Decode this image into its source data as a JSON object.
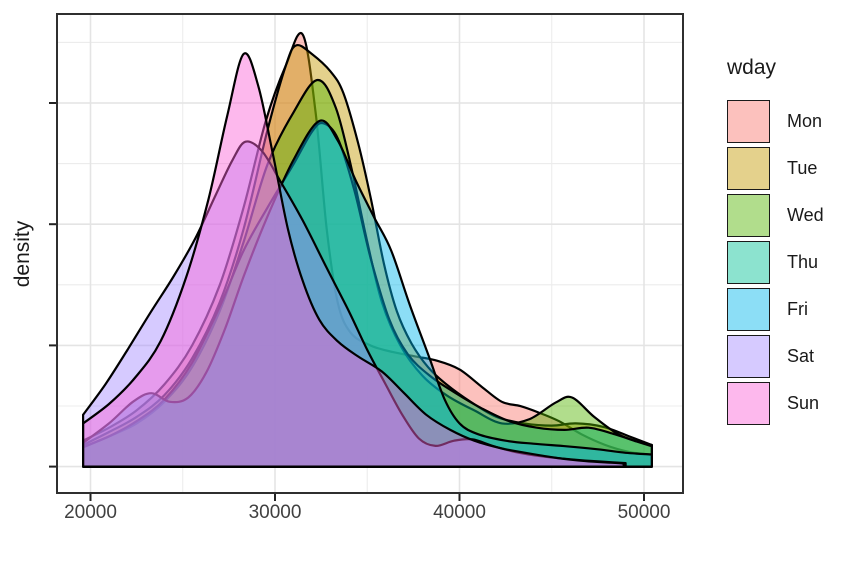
{
  "chart_data": {
    "type": "area",
    "subtype": "overlapping-density-curves",
    "title": "",
    "xlabel": "",
    "ylabel": "density",
    "x_ticks": [
      20000,
      30000,
      40000,
      50000
    ],
    "x_tick_labels": [
      "20000",
      "30000",
      "40000",
      "50000"
    ],
    "x_minor_ticks": [
      25000,
      35000,
      45000
    ],
    "xlim": [
      18180,
      52100
    ],
    "y_axis_labeled": false,
    "y_major_tick_count": 4,
    "y_unit": "relative density (peak of Mon = 1.0; y tick labels not shown)",
    "grid": true,
    "legend": {
      "title": "wday",
      "position": "right"
    },
    "style": {
      "fill_opacity": 0.45,
      "stroke_color": "#000000",
      "stroke_width": 2.2,
      "panel_border_color": "#2f2f2f",
      "grid_major_color": "#e4e4e4",
      "grid_minor_color": "#ececec",
      "tick_color": "#222222",
      "axis_text_color": "#404040"
    },
    "series": [
      {
        "name": "Mon",
        "color": "#F8766D",
        "points": [
          [
            19600,
            0.06
          ],
          [
            21000,
            0.09
          ],
          [
            22500,
            0.13
          ],
          [
            24000,
            0.19
          ],
          [
            25500,
            0.28
          ],
          [
            27000,
            0.42
          ],
          [
            28300,
            0.6
          ],
          [
            29500,
            0.8
          ],
          [
            30600,
            0.93
          ],
          [
            31500,
            1.0
          ],
          [
            32200,
            0.82
          ],
          [
            32800,
            0.55
          ],
          [
            33400,
            0.38
          ],
          [
            34100,
            0.31
          ],
          [
            35200,
            0.28
          ],
          [
            36400,
            0.265
          ],
          [
            37600,
            0.255
          ],
          [
            38800,
            0.245
          ],
          [
            40000,
            0.225
          ],
          [
            41200,
            0.185
          ],
          [
            42300,
            0.15
          ],
          [
            43300,
            0.14
          ],
          [
            44300,
            0.125
          ],
          [
            45400,
            0.105
          ],
          [
            46600,
            0.075
          ],
          [
            47900,
            0.05
          ],
          [
            49200,
            0.034
          ],
          [
            50430,
            0.027
          ]
        ]
      },
      {
        "name": "Tue",
        "color": "#C49A00",
        "points": [
          [
            19600,
            0.05
          ],
          [
            21000,
            0.08
          ],
          [
            22500,
            0.115
          ],
          [
            24000,
            0.165
          ],
          [
            25500,
            0.25
          ],
          [
            27000,
            0.38
          ],
          [
            28300,
            0.55
          ],
          [
            29600,
            0.78
          ],
          [
            30600,
            0.93
          ],
          [
            31150,
            0.975
          ],
          [
            32000,
            0.955
          ],
          [
            33000,
            0.915
          ],
          [
            33700,
            0.865
          ],
          [
            34500,
            0.75
          ],
          [
            35200,
            0.62
          ],
          [
            35900,
            0.47
          ],
          [
            36600,
            0.36
          ],
          [
            37400,
            0.285
          ],
          [
            38300,
            0.23
          ],
          [
            39300,
            0.19
          ],
          [
            40600,
            0.15
          ],
          [
            42000,
            0.115
          ],
          [
            43500,
            0.1
          ],
          [
            45000,
            0.095
          ],
          [
            46300,
            0.1
          ],
          [
            47800,
            0.092
          ],
          [
            49200,
            0.07
          ],
          [
            50430,
            0.05
          ]
        ]
      },
      {
        "name": "Wed",
        "color": "#53B400",
        "points": [
          [
            19600,
            0.045
          ],
          [
            21000,
            0.07
          ],
          [
            22500,
            0.1
          ],
          [
            24000,
            0.15
          ],
          [
            25500,
            0.23
          ],
          [
            27000,
            0.36
          ],
          [
            28300,
            0.52
          ],
          [
            29600,
            0.7
          ],
          [
            31000,
            0.82
          ],
          [
            32300,
            0.895
          ],
          [
            33300,
            0.83
          ],
          [
            34200,
            0.68
          ],
          [
            35000,
            0.52
          ],
          [
            35800,
            0.38
          ],
          [
            36800,
            0.28
          ],
          [
            38000,
            0.21
          ],
          [
            39300,
            0.165
          ],
          [
            40800,
            0.13
          ],
          [
            42300,
            0.1
          ],
          [
            43800,
            0.11
          ],
          [
            45200,
            0.148
          ],
          [
            46100,
            0.16
          ],
          [
            47300,
            0.115
          ],
          [
            48600,
            0.075
          ],
          [
            49800,
            0.056
          ],
          [
            50430,
            0.05
          ]
        ]
      },
      {
        "name": "Thu",
        "color": "#00C094",
        "points": [
          [
            19600,
            0.045
          ],
          [
            21000,
            0.07
          ],
          [
            22500,
            0.105
          ],
          [
            24000,
            0.155
          ],
          [
            25500,
            0.24
          ],
          [
            27000,
            0.37
          ],
          [
            28300,
            0.5
          ],
          [
            29600,
            0.6
          ],
          [
            31000,
            0.7
          ],
          [
            32000,
            0.775
          ],
          [
            32600,
            0.795
          ],
          [
            33400,
            0.76
          ],
          [
            34300,
            0.64
          ],
          [
            35200,
            0.48
          ],
          [
            36200,
            0.34
          ],
          [
            37200,
            0.26
          ],
          [
            38400,
            0.21
          ],
          [
            39800,
            0.17
          ],
          [
            41200,
            0.135
          ],
          [
            42700,
            0.105
          ],
          [
            44200,
            0.09
          ],
          [
            45700,
            0.085
          ],
          [
            47000,
            0.09
          ],
          [
            48400,
            0.075
          ],
          [
            49600,
            0.058
          ],
          [
            50430,
            0.047
          ]
        ]
      },
      {
        "name": "Fri",
        "color": "#00B6EB",
        "points": [
          [
            19600,
            0.055
          ],
          [
            21000,
            0.1
          ],
          [
            22300,
            0.15
          ],
          [
            23300,
            0.17
          ],
          [
            24300,
            0.15
          ],
          [
            25300,
            0.16
          ],
          [
            26300,
            0.22
          ],
          [
            27300,
            0.32
          ],
          [
            28300,
            0.44
          ],
          [
            29500,
            0.57
          ],
          [
            31000,
            0.71
          ],
          [
            32400,
            0.8
          ],
          [
            33400,
            0.755
          ],
          [
            34400,
            0.66
          ],
          [
            35400,
            0.575
          ],
          [
            36300,
            0.5
          ],
          [
            37300,
            0.375
          ],
          [
            38300,
            0.26
          ],
          [
            39200,
            0.155
          ],
          [
            40000,
            0.1
          ],
          [
            41000,
            0.075
          ],
          [
            42500,
            0.06
          ],
          [
            44000,
            0.053
          ],
          [
            45800,
            0.047
          ],
          [
            47500,
            0.04
          ],
          [
            49000,
            0.032
          ],
          [
            50430,
            0.028
          ]
        ]
      },
      {
        "name": "Sat",
        "color": "#A58AFF",
        "points": [
          [
            19600,
            0.12
          ],
          [
            20800,
            0.19
          ],
          [
            22000,
            0.27
          ],
          [
            23300,
            0.36
          ],
          [
            24500,
            0.44
          ],
          [
            25700,
            0.53
          ],
          [
            26800,
            0.63
          ],
          [
            27700,
            0.71
          ],
          [
            28400,
            0.752
          ],
          [
            29300,
            0.73
          ],
          [
            30300,
            0.66
          ],
          [
            31500,
            0.57
          ],
          [
            32800,
            0.46
          ],
          [
            34000,
            0.36
          ],
          [
            35000,
            0.27
          ],
          [
            36000,
            0.19
          ],
          [
            36900,
            0.12
          ],
          [
            37800,
            0.065
          ],
          [
            38700,
            0.048
          ],
          [
            39700,
            0.06
          ],
          [
            40700,
            0.063
          ],
          [
            41800,
            0.048
          ],
          [
            43000,
            0.034
          ],
          [
            44400,
            0.024
          ],
          [
            46000,
            0.017
          ],
          [
            47500,
            0.012
          ],
          [
            49000,
            0.008
          ]
        ]
      },
      {
        "name": "Sun",
        "color": "#FB61D7",
        "points": [
          [
            19600,
            0.1
          ],
          [
            21000,
            0.145
          ],
          [
            22400,
            0.205
          ],
          [
            23800,
            0.29
          ],
          [
            25200,
            0.44
          ],
          [
            26400,
            0.62
          ],
          [
            27400,
            0.81
          ],
          [
            28300,
            0.955
          ],
          [
            29100,
            0.88
          ],
          [
            29900,
            0.72
          ],
          [
            30700,
            0.55
          ],
          [
            31500,
            0.43
          ],
          [
            32400,
            0.34
          ],
          [
            33400,
            0.29
          ],
          [
            34500,
            0.255
          ],
          [
            35800,
            0.22
          ],
          [
            37000,
            0.17
          ],
          [
            38200,
            0.12
          ],
          [
            39500,
            0.085
          ],
          [
            40800,
            0.06
          ],
          [
            42300,
            0.042
          ],
          [
            43800,
            0.03
          ],
          [
            45300,
            0.02
          ],
          [
            46800,
            0.013
          ],
          [
            48200,
            0.009
          ],
          [
            48900,
            0.007
          ]
        ]
      }
    ]
  }
}
